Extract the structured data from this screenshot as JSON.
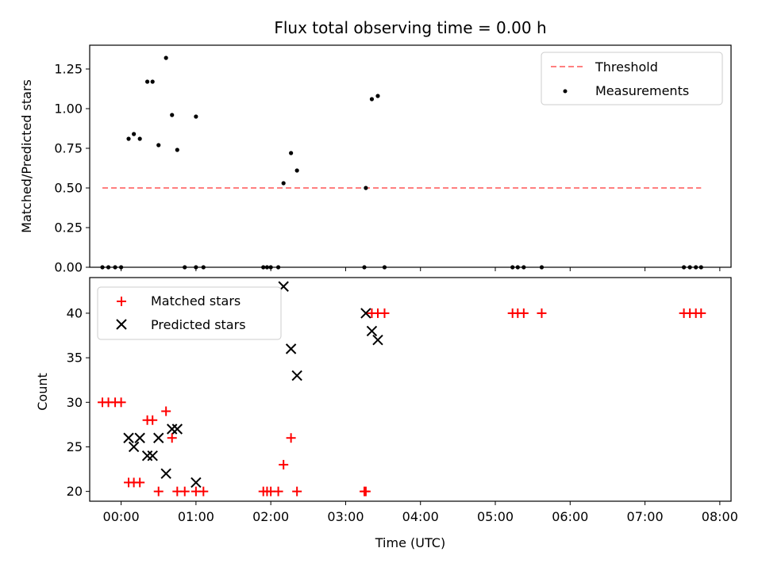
{
  "chart_data": [
    {
      "panel": "top",
      "type": "scatter",
      "title": "Flux total observing time = 0.00 h",
      "ylabel": "Matched/Predicted stars",
      "xlim": [
        -0.42,
        8.15
      ],
      "ylim": [
        0,
        1.4
      ],
      "yticks": [
        0,
        0.25,
        0.5,
        0.75,
        1.0,
        1.25
      ],
      "ytick_labels": [
        "0.00",
        "0.25",
        "0.50",
        "0.75",
        "1.00",
        "1.25"
      ],
      "xticks": [
        0,
        1,
        2,
        3,
        4,
        5,
        6,
        7,
        8
      ],
      "legend_position": "top-right",
      "series": [
        {
          "name": "Threshold",
          "kind": "dashed-line",
          "color": "#ff7f7f",
          "x": [
            -0.25,
            7.75
          ],
          "y": [
            0.5,
            0.5
          ]
        },
        {
          "name": "Measurements",
          "kind": "dot",
          "color": "#000000",
          "points": [
            [
              -0.25,
              0
            ],
            [
              -0.17,
              0
            ],
            [
              -0.08,
              0
            ],
            [
              0.0,
              0
            ],
            [
              0.1,
              0.81
            ],
            [
              0.17,
              0.84
            ],
            [
              0.25,
              0.81
            ],
            [
              0.35,
              1.17
            ],
            [
              0.42,
              1.17
            ],
            [
              0.5,
              0.77
            ],
            [
              0.6,
              1.32
            ],
            [
              0.68,
              0.96
            ],
            [
              0.75,
              0.74
            ],
            [
              0.85,
              0
            ],
            [
              1.0,
              0.95
            ],
            [
              1.0,
              0
            ],
            [
              1.1,
              0
            ],
            [
              1.9,
              0
            ],
            [
              1.95,
              0
            ],
            [
              2.0,
              0
            ],
            [
              2.1,
              0
            ],
            [
              2.17,
              0.53
            ],
            [
              2.27,
              0.72
            ],
            [
              2.35,
              0.61
            ],
            [
              3.25,
              0
            ],
            [
              3.27,
              0.5
            ],
            [
              3.35,
              1.06
            ],
            [
              3.43,
              1.08
            ],
            [
              3.52,
              0
            ],
            [
              5.23,
              0
            ],
            [
              5.3,
              0
            ],
            [
              5.38,
              0
            ],
            [
              5.62,
              0
            ],
            [
              7.52,
              0
            ],
            [
              7.6,
              0
            ],
            [
              7.68,
              0
            ],
            [
              7.75,
              0
            ]
          ]
        }
      ]
    },
    {
      "panel": "bottom",
      "type": "scatter",
      "xlabel": "Time (UTC)",
      "ylabel": "Count",
      "xlim": [
        -0.42,
        8.15
      ],
      "ylim": [
        18.9,
        44
      ],
      "yticks": [
        20,
        25,
        30,
        35,
        40
      ],
      "xticks": [
        0,
        1,
        2,
        3,
        4,
        5,
        6,
        7,
        8
      ],
      "xtick_labels": [
        "00:00",
        "01:00",
        "02:00",
        "03:00",
        "04:00",
        "05:00",
        "06:00",
        "07:00",
        "08:00"
      ],
      "legend_position": "top-left",
      "series": [
        {
          "name": "Matched stars",
          "marker": "plus",
          "color": "#ff0000",
          "points": [
            [
              -0.25,
              30
            ],
            [
              -0.17,
              30
            ],
            [
              -0.08,
              30
            ],
            [
              0.0,
              30
            ],
            [
              0.1,
              21
            ],
            [
              0.17,
              21
            ],
            [
              0.25,
              21
            ],
            [
              0.35,
              28
            ],
            [
              0.42,
              28
            ],
            [
              0.5,
              20
            ],
            [
              0.6,
              29
            ],
            [
              0.68,
              26
            ],
            [
              0.75,
              20
            ],
            [
              0.85,
              20
            ],
            [
              1.0,
              20
            ],
            [
              1.1,
              20
            ],
            [
              1.9,
              20
            ],
            [
              1.95,
              20
            ],
            [
              2.0,
              20
            ],
            [
              2.1,
              20
            ],
            [
              2.17,
              23
            ],
            [
              2.27,
              26
            ],
            [
              2.35,
              20
            ],
            [
              3.25,
              20
            ],
            [
              3.27,
              20
            ],
            [
              3.35,
              40
            ],
            [
              3.43,
              40
            ],
            [
              3.52,
              40
            ],
            [
              5.23,
              40
            ],
            [
              5.3,
              40
            ],
            [
              5.38,
              40
            ],
            [
              5.62,
              40
            ],
            [
              7.52,
              40
            ],
            [
              7.6,
              40
            ],
            [
              7.68,
              40
            ],
            [
              7.75,
              40
            ]
          ]
        },
        {
          "name": "Predicted stars",
          "marker": "x",
          "color": "#000000",
          "points": [
            [
              0.1,
              26
            ],
            [
              0.17,
              25
            ],
            [
              0.25,
              26
            ],
            [
              0.35,
              24
            ],
            [
              0.42,
              24
            ],
            [
              0.5,
              26
            ],
            [
              0.6,
              22
            ],
            [
              0.68,
              27
            ],
            [
              0.75,
              27
            ],
            [
              1.0,
              21
            ],
            [
              2.17,
              43
            ],
            [
              2.27,
              36
            ],
            [
              2.35,
              33
            ],
            [
              3.27,
              40
            ],
            [
              3.35,
              38
            ],
            [
              3.43,
              37
            ]
          ]
        }
      ]
    }
  ]
}
